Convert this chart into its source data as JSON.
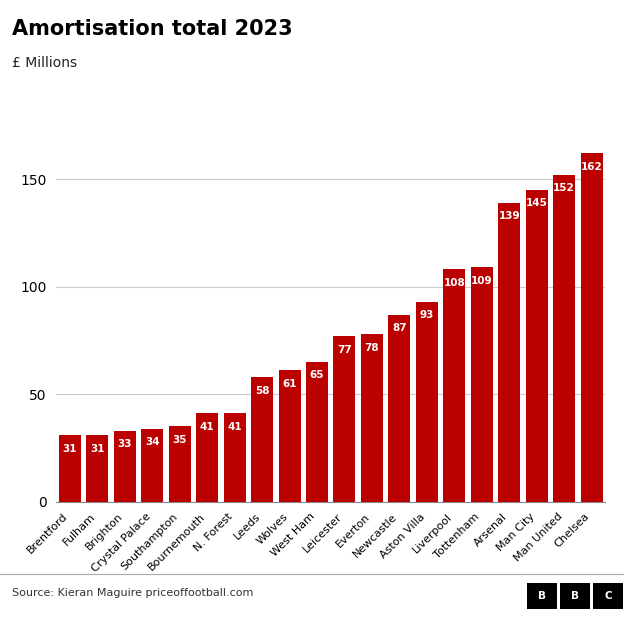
{
  "title": "Amortisation total 2023",
  "subtitle": "£ Millions",
  "categories": [
    "Brentford",
    "Fulham",
    "Brighton",
    "Crystal Palace",
    "Southampton",
    "Bournemouth",
    "N. Forest",
    "Leeds",
    "Wolves",
    "West Ham",
    "Leicester",
    "Everton",
    "Newcastle",
    "Aston Villa",
    "Liverpool",
    "Tottenham",
    "Arsenal",
    "Man City",
    "Man United",
    "Chelsea"
  ],
  "values": [
    31,
    31,
    33,
    34,
    35,
    41,
    41,
    58,
    61,
    65,
    77,
    78,
    87,
    93,
    108,
    109,
    139,
    145,
    152,
    162
  ],
  "bar_color": "#bb0000",
  "label_color": "#ffffff",
  "background_color": "#ffffff",
  "yticks": [
    0,
    50,
    100,
    150
  ],
  "ylim": [
    0,
    175
  ],
  "source_text": "Source: Kieran Maguire priceoffootball.com",
  "title_fontsize": 15,
  "subtitle_fontsize": 10,
  "label_fontsize": 7.5,
  "tick_fontsize": 10,
  "source_fontsize": 8,
  "xtick_fontsize": 8
}
